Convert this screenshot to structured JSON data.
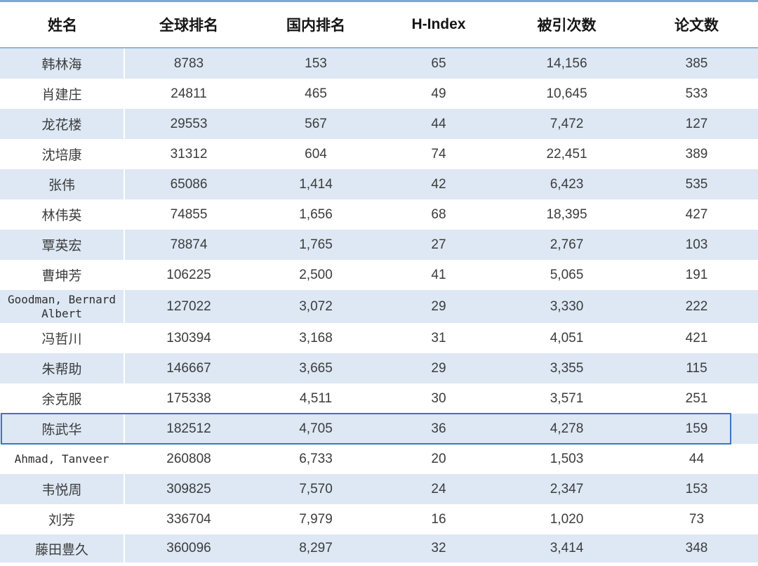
{
  "table": {
    "columns": [
      {
        "key": "name",
        "label": "姓名"
      },
      {
        "key": "global_rank",
        "label": "全球排名"
      },
      {
        "key": "domestic_rank",
        "label": "国内排名"
      },
      {
        "key": "h_index",
        "label": "H-Index"
      },
      {
        "key": "citations",
        "label": "被引次数"
      },
      {
        "key": "papers",
        "label": "论文数"
      }
    ],
    "rows": [
      {
        "name": "韩林海",
        "global_rank": "8783",
        "domestic_rank": "153",
        "h_index": "65",
        "citations": "14,156",
        "papers": "385"
      },
      {
        "name": "肖建庄",
        "global_rank": "24811",
        "domestic_rank": "465",
        "h_index": "49",
        "citations": "10,645",
        "papers": "533"
      },
      {
        "name": "龙花楼",
        "global_rank": "29553",
        "domestic_rank": "567",
        "h_index": "44",
        "citations": "7,472",
        "papers": "127"
      },
      {
        "name": "沈培康",
        "global_rank": "31312",
        "domestic_rank": "604",
        "h_index": "74",
        "citations": "22,451",
        "papers": "389"
      },
      {
        "name": "张伟",
        "global_rank": "65086",
        "domestic_rank": "1,414",
        "h_index": "42",
        "citations": "6,423",
        "papers": "535"
      },
      {
        "name": "林伟英",
        "global_rank": "74855",
        "domestic_rank": "1,656",
        "h_index": "68",
        "citations": "18,395",
        "papers": "427"
      },
      {
        "name": "覃英宏",
        "global_rank": "78874",
        "domestic_rank": "1,765",
        "h_index": "27",
        "citations": "2,767",
        "papers": "103"
      },
      {
        "name": "曹坤芳",
        "global_rank": "106225",
        "domestic_rank": "2,500",
        "h_index": "41",
        "citations": "5,065",
        "papers": "191"
      },
      {
        "name": "Goodman, Bernard Albert",
        "global_rank": "127022",
        "domestic_rank": "3,072",
        "h_index": "29",
        "citations": "3,330",
        "papers": "222"
      },
      {
        "name": "冯哲川",
        "global_rank": "130394",
        "domestic_rank": "3,168",
        "h_index": "31",
        "citations": "4,051",
        "papers": "421"
      },
      {
        "name": "朱帮助",
        "global_rank": "146667",
        "domestic_rank": "3,665",
        "h_index": "29",
        "citations": "3,355",
        "papers": "115"
      },
      {
        "name": "余克服",
        "global_rank": "175338",
        "domestic_rank": "4,511",
        "h_index": "30",
        "citations": "3,571",
        "papers": "251"
      },
      {
        "name": "陈武华",
        "global_rank": "182512",
        "domestic_rank": "4,705",
        "h_index": "36",
        "citations": "4,278",
        "papers": "159"
      },
      {
        "name": "Ahmad, Tanveer",
        "global_rank": "260808",
        "domestic_rank": "6,733",
        "h_index": "20",
        "citations": "1,503",
        "papers": "44"
      },
      {
        "name": "韦悦周",
        "global_rank": "309825",
        "domestic_rank": "7,570",
        "h_index": "24",
        "citations": "2,347",
        "papers": "153"
      },
      {
        "name": "刘芳",
        "global_rank": "336704",
        "domestic_rank": "7,979",
        "h_index": "16",
        "citations": "1,020",
        "papers": "73"
      },
      {
        "name": "藤田豊久",
        "global_rank": "360096",
        "domestic_rank": "8,297",
        "h_index": "32",
        "citations": "3,414",
        "papers": "348"
      }
    ],
    "selected_row_index": 12
  },
  "colors": {
    "band": "#dde8f4",
    "top_border": "#7ca7d9",
    "bottom_border": "#5b9fd8",
    "header_underline": "#8fb6e2",
    "selection_border": "#4472c4"
  }
}
